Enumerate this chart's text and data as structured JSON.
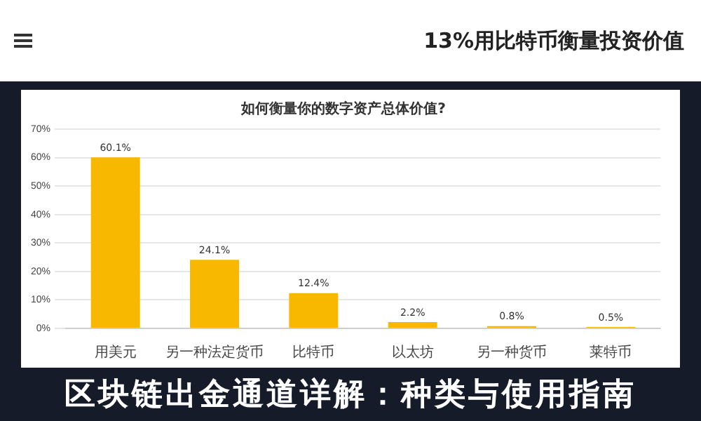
{
  "chart_data": {
    "type": "bar",
    "title": "如何衡量你的数字资产总体价值?",
    "subtitle": "13%用比特币衡量投资价值",
    "annotations": [
      "区块链出金通道详解：种类与使用指南"
    ],
    "categories": [
      "用美元",
      "另一种法定货币",
      "比特币",
      "以太坊",
      "另一种货币",
      "莱特币"
    ],
    "values": [
      60.1,
      24.1,
      12.4,
      2.2,
      0.8,
      0.5
    ],
    "color": "#f9b800",
    "value_labels": [
      "60.1%",
      "24.1%",
      "12.4%",
      "2.2%",
      "0.8%",
      "0.5%"
    ],
    "ylim": [
      0,
      70
    ],
    "yticks": [
      {
        "value": 0,
        "label": "0%"
      },
      {
        "value": 10,
        "label": "10%"
      },
      {
        "value": 20,
        "label": "20%"
      },
      {
        "value": 30,
        "label": "30%"
      },
      {
        "value": 40,
        "label": "40%"
      },
      {
        "value": 50,
        "label": "50%"
      },
      {
        "value": 60,
        "label": "60%"
      },
      {
        "value": 70,
        "label": "70%"
      }
    ],
    "grid": "y",
    "legend": false
  }
}
